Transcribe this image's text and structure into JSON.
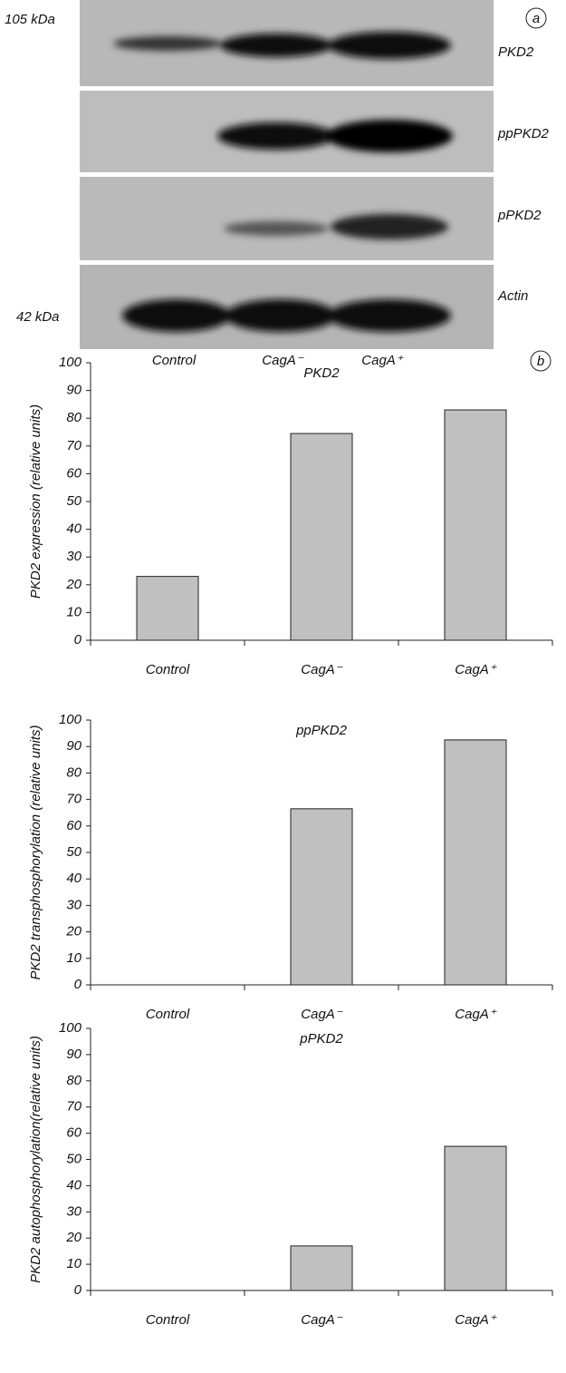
{
  "blot": {
    "panel_label": "a",
    "markers": [
      "105 kDa",
      "42 kDa"
    ],
    "bands": [
      "PKD2",
      "ppPKD2",
      "pPKD2",
      "Actin"
    ],
    "lanes": [
      "Control",
      "CagA⁻",
      "CagA⁺"
    ]
  },
  "panel_b_label": "b",
  "chart_data": [
    {
      "type": "bar",
      "title": "PKD2",
      "ylabel": "PKD2 expression  (relative units)",
      "categories": [
        "Control",
        "CagA⁻",
        "CagA⁺"
      ],
      "values": [
        23,
        74.5,
        83
      ],
      "color": "#c0c0c0",
      "ylim": [
        0,
        100
      ],
      "yticks": [
        0,
        10,
        20,
        30,
        40,
        50,
        60,
        70,
        80,
        90,
        100
      ]
    },
    {
      "type": "bar",
      "title": "ppPKD2",
      "ylabel": "PKD2 transphosphorylation  (relative units)",
      "categories": [
        "Control",
        "CagA⁻",
        "CagA⁺"
      ],
      "values": [
        0,
        66.5,
        92.5
      ],
      "color": "#c0c0c0",
      "ylim": [
        0,
        100
      ],
      "yticks": [
        0,
        10,
        20,
        30,
        40,
        50,
        60,
        70,
        80,
        90,
        100
      ]
    },
    {
      "type": "bar",
      "title": "pPKD2",
      "ylabel": "PKD2 autophosphorylation(relative units)",
      "categories": [
        "Control",
        "CagA⁻",
        "CagA⁺"
      ],
      "values": [
        0,
        17,
        55
      ],
      "color": "#c0c0c0",
      "ylim": [
        0,
        100
      ],
      "yticks": [
        0,
        10,
        20,
        30,
        40,
        50,
        60,
        70,
        80,
        90,
        100
      ]
    }
  ]
}
